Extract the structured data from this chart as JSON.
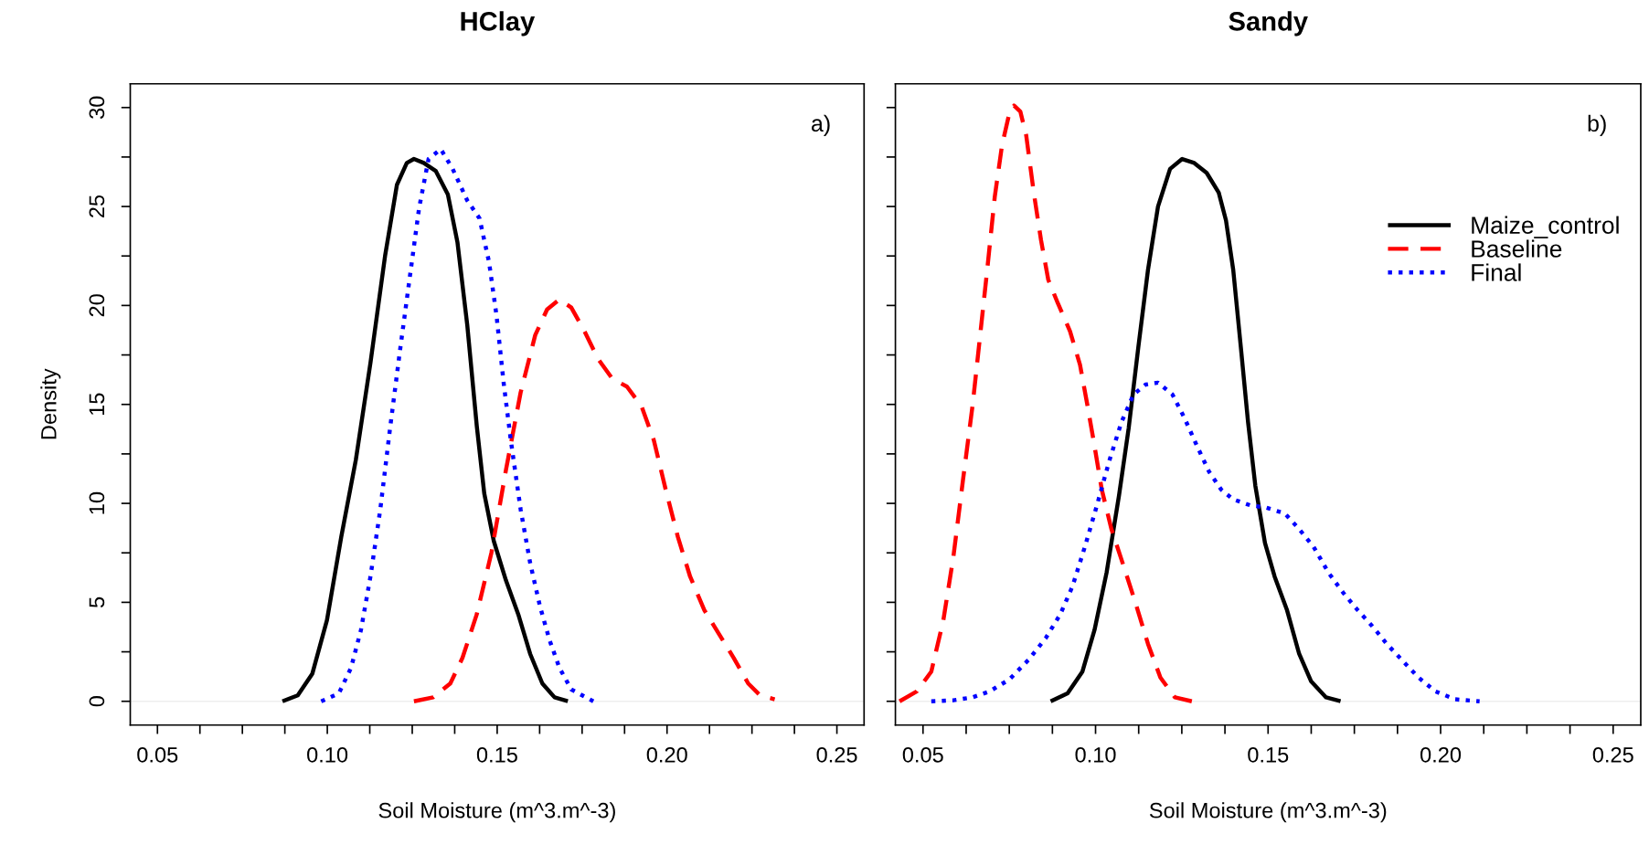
{
  "chart_data": [
    {
      "type": "line",
      "title": "HClay",
      "xlabel": "Soil Moisture (m^3.m^-3)",
      "ylabel": "Density",
      "annotations": [
        "a)"
      ],
      "xlim": [
        0.042,
        0.258
      ],
      "ylim": [
        -1.2,
        31.2
      ],
      "xticks": [
        0.05,
        {
          "value": 0.0625,
          "label": null
        },
        {
          "value": 0.075,
          "label": null
        },
        {
          "value": 0.0875,
          "label": null
        },
        {
          "value": 0.1,
          "label": "0.10"
        },
        {
          "value": 0.1125,
          "label": null
        },
        {
          "value": 0.125,
          "label": null
        },
        {
          "value": 0.1375,
          "label": null
        },
        0.15,
        {
          "value": 0.1625,
          "label": null
        },
        {
          "value": 0.175,
          "label": null
        },
        {
          "value": 0.1875,
          "label": null
        },
        {
          "value": 0.2,
          "label": "0.20"
        },
        {
          "value": 0.2125,
          "label": null
        },
        {
          "value": 0.225,
          "label": null
        },
        {
          "value": 0.2375,
          "label": null
        },
        0.25
      ],
      "yticks": [
        0,
        {
          "value": 2.5,
          "label": null
        },
        5,
        {
          "value": 7.5,
          "label": null
        },
        10,
        {
          "value": 12.5,
          "label": null
        },
        15,
        {
          "value": 17.5,
          "label": null
        },
        20,
        {
          "value": 22.5,
          "label": null
        },
        25,
        {
          "value": 27.5,
          "label": null
        },
        30
      ],
      "ref_lines": [
        {
          "axis": "y",
          "value": 0,
          "label": null,
          "color": "#eeeeee"
        }
      ],
      "series": [
        {
          "color": "#000000",
          "line_style": "solid",
          "x": [
            0.0868,
            0.0913,
            0.0956,
            0.0999,
            0.1041,
            0.1084,
            0.1127,
            0.117,
            0.1205,
            0.1234,
            0.1255,
            0.1284,
            0.1319,
            0.1355,
            0.1383,
            0.1412,
            0.144,
            0.1462,
            0.149,
            0.1526,
            0.1562,
            0.1597,
            0.1633,
            0.1669,
            0.1708
          ],
          "values": [
            0,
            0.3,
            1.4,
            4.1,
            8.3,
            12.2,
            17.1,
            22.5,
            26.1,
            27.2,
            27.4,
            27.2,
            26.8,
            25.6,
            23.2,
            19.0,
            13.9,
            10.5,
            8.1,
            6.1,
            4.4,
            2.4,
            0.9,
            0.2,
            0
          ]
        },
        {
          "color": "#ff0000",
          "line_style": "dashed",
          "x": [
            0.1255,
            0.1312,
            0.1362,
            0.1398,
            0.144,
            0.1483,
            0.1526,
            0.1569,
            0.1612,
            0.1647,
            0.1683,
            0.1718,
            0.1754,
            0.1797,
            0.1839,
            0.1882,
            0.1925,
            0.1961,
            0.1996,
            0.2032,
            0.2068,
            0.211,
            0.2153,
            0.2196,
            0.2239,
            0.2274,
            0.2317
          ],
          "values": [
            0,
            0.2,
            0.9,
            2.2,
            4.4,
            7.5,
            11.7,
            15.6,
            18.5,
            19.8,
            20.3,
            19.9,
            18.8,
            17.3,
            16.3,
            15.9,
            14.9,
            13.2,
            10.7,
            8.3,
            6.3,
            4.6,
            3.4,
            2.2,
            0.9,
            0.3,
            0.1
          ]
        },
        {
          "color": "#0000ff",
          "line_style": "dotted",
          "x": [
            0.0982,
            0.1034,
            0.107,
            0.1099,
            0.1127,
            0.1156,
            0.1184,
            0.1213,
            0.1241,
            0.127,
            0.1298,
            0.1334,
            0.1369,
            0.1412,
            0.1448,
            0.1476,
            0.1498,
            0.1519,
            0.154,
            0.1569,
            0.1597,
            0.1626,
            0.1654,
            0.1683,
            0.1718,
            0.1783
          ],
          "values": [
            0,
            0.4,
            1.7,
            3.6,
            6.3,
            9.7,
            13.7,
            17.6,
            21.2,
            24.9,
            27.4,
            27.9,
            26.9,
            25.3,
            24.4,
            22.2,
            19.5,
            16.1,
            13.2,
            9.7,
            7.0,
            4.8,
            3.1,
            1.7,
            0.6,
            0
          ]
        }
      ]
    },
    {
      "type": "line",
      "title": "Sandy",
      "xlabel": "Soil Moisture (m^3.m^-3)",
      "annotations": [
        "b)"
      ],
      "legend": "top right",
      "tick_labels": "x",
      "xlim": [
        0.042,
        0.258
      ],
      "ylim": [
        -1.2,
        31.2
      ],
      "xticks": [
        0.05,
        {
          "value": 0.0625,
          "label": null
        },
        {
          "value": 0.075,
          "label": null
        },
        {
          "value": 0.0875,
          "label": null
        },
        {
          "value": 0.1,
          "label": "0.10"
        },
        {
          "value": 0.1125,
          "label": null
        },
        {
          "value": 0.125,
          "label": null
        },
        {
          "value": 0.1375,
          "label": null
        },
        0.15,
        {
          "value": 0.1625,
          "label": null
        },
        {
          "value": 0.175,
          "label": null
        },
        {
          "value": 0.1875,
          "label": null
        },
        {
          "value": 0.2,
          "label": "0.20"
        },
        {
          "value": 0.2125,
          "label": null
        },
        {
          "value": 0.225,
          "label": null
        },
        {
          "value": 0.2375,
          "label": null
        },
        0.25
      ],
      "yticks": [
        0,
        {
          "value": 2.5,
          "label": null
        },
        5,
        {
          "value": 7.5,
          "label": null
        },
        10,
        {
          "value": 12.5,
          "label": null
        },
        15,
        {
          "value": 17.5,
          "label": null
        },
        20,
        {
          "value": 22.5,
          "label": null
        },
        25,
        {
          "value": 27.5,
          "label": null
        },
        30
      ],
      "ref_lines": [
        {
          "axis": "y",
          "value": 0,
          "label": null,
          "color": "#eeeeee"
        }
      ],
      "series": [
        {
          "name": "Maize_control",
          "color": "#000000",
          "line_style": "solid",
          "x": [
            0.087,
            0.0919,
            0.0962,
            0.0997,
            0.1032,
            0.1068,
            0.1096,
            0.1124,
            0.1152,
            0.1181,
            0.1216,
            0.1251,
            0.1286,
            0.1322,
            0.1357,
            0.1378,
            0.1399,
            0.1421,
            0.1442,
            0.1463,
            0.1491,
            0.1519,
            0.1555,
            0.159,
            0.1625,
            0.1668,
            0.171
          ],
          "values": [
            0,
            0.4,
            1.5,
            3.6,
            6.5,
            10.4,
            13.8,
            17.9,
            21.8,
            25.0,
            26.9,
            27.4,
            27.2,
            26.7,
            25.7,
            24.3,
            21.8,
            17.9,
            14.1,
            10.9,
            8.0,
            6.3,
            4.6,
            2.4,
            1.0,
            0.2,
            0
          ]
        },
        {
          "name": "Baseline",
          "color": "#ff0000",
          "line_style": "dashed",
          "x": [
            0.0432,
            0.0482,
            0.0524,
            0.0559,
            0.0588,
            0.0616,
            0.0644,
            0.0665,
            0.0686,
            0.0708,
            0.0729,
            0.075,
            0.0764,
            0.0782,
            0.0799,
            0.0821,
            0.0842,
            0.0863,
            0.0891,
            0.0926,
            0.0955,
            0.0976,
            0.0997,
            0.1018,
            0.1046,
            0.1082,
            0.1117,
            0.1152,
            0.1188,
            0.123,
            0.1279
          ],
          "values": [
            0,
            0.5,
            1.5,
            4.1,
            7.3,
            11.2,
            15.0,
            18.4,
            21.8,
            25.5,
            28.1,
            29.7,
            30.1,
            29.8,
            28.6,
            25.7,
            23.3,
            21.3,
            20.1,
            18.7,
            17.0,
            15.0,
            12.9,
            10.7,
            8.7,
            6.8,
            4.9,
            2.9,
            1.2,
            0.2,
            0
          ]
        },
        {
          "name": "Final",
          "color": "#0000ff",
          "line_style": "dotted",
          "x": [
            0.0524,
            0.0588,
            0.0644,
            0.0693,
            0.075,
            0.0806,
            0.0856,
            0.0898,
            0.0933,
            0.0969,
            0.1004,
            0.1039,
            0.1075,
            0.111,
            0.1145,
            0.1181,
            0.1223,
            0.1258,
            0.1294,
            0.1329,
            0.1364,
            0.1399,
            0.1449,
            0.1491,
            0.1548,
            0.159,
            0.1632,
            0.1675,
            0.1717,
            0.176,
            0.1802,
            0.1844,
            0.1887,
            0.1936,
            0.1985,
            0.2042,
            0.2113
          ],
          "values": [
            0,
            0.05,
            0.2,
            0.5,
            1.1,
            2.1,
            3.2,
            4.4,
            5.8,
            7.8,
            9.9,
            12.1,
            14.1,
            15.5,
            16.0,
            16.1,
            15.5,
            14.3,
            12.9,
            11.6,
            10.7,
            10.2,
            9.9,
            9.8,
            9.5,
            8.7,
            7.8,
            6.5,
            5.5,
            4.6,
            3.8,
            2.9,
            2.1,
            1.2,
            0.5,
            0.1,
            0
          ]
        }
      ]
    }
  ]
}
